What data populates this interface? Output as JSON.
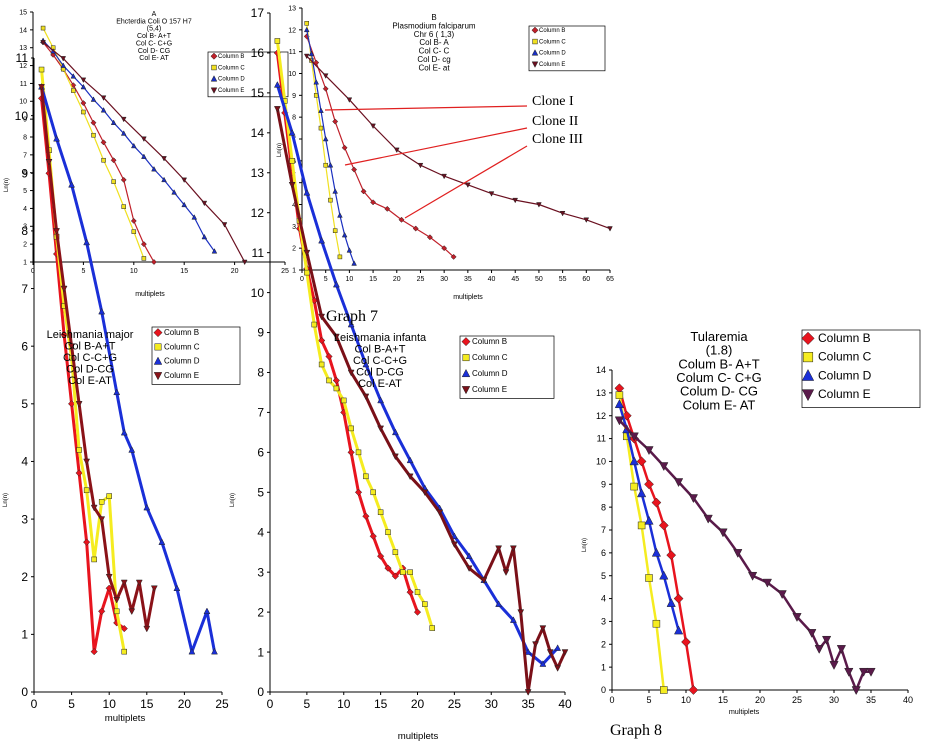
{
  "captions": {
    "graph7": "Graph 7",
    "graph8": "Graph 8"
  },
  "annotations": {
    "clone1": "Clone I",
    "clone2": "Clone II",
    "clone3": "Clone III"
  },
  "colors": {
    "B": "#c0202a",
    "C": "#f0e020",
    "D": "#1a2fc0",
    "E": "#6a1020"
  },
  "chart_data": [
    {
      "id": "ecoli",
      "type": "line",
      "title_lines": [
        "A",
        "Ehcterdia Coli O 157 H7",
        "(5,4)",
        "Col B- A+T",
        "Col C- C+G",
        "Col D- CG",
        "Col E- AT"
      ],
      "xlabel": "multiplets",
      "ylabel": "Ln(n)",
      "xlim": [
        0,
        25
      ],
      "ylim": [
        1,
        15
      ],
      "xticks": [
        0,
        5,
        10,
        15,
        20,
        25
      ],
      "yticks": [
        1,
        2,
        3,
        4,
        5,
        6,
        7,
        8,
        9,
        10,
        11,
        12,
        13,
        14,
        15
      ],
      "legend": [
        "Column B",
        "Column C",
        "Column D",
        "Column E"
      ],
      "series": [
        {
          "name": "Column B",
          "marker": "diamond",
          "color": "#c0202a",
          "x": [
            1,
            2,
            3,
            4,
            5,
            6,
            7,
            8,
            9,
            10,
            11,
            12
          ],
          "y": [
            13.3,
            12.6,
            11.8,
            10.9,
            9.9,
            8.8,
            7.7,
            6.7,
            5.6,
            3.3,
            2.0,
            1.0
          ]
        },
        {
          "name": "Column C",
          "marker": "square",
          "color": "#f0e020",
          "x": [
            1,
            2,
            3,
            4,
            5,
            6,
            7,
            8,
            9,
            10,
            11
          ],
          "y": [
            14.1,
            13.0,
            11.8,
            10.6,
            9.4,
            8.1,
            6.7,
            5.5,
            4.1,
            2.7,
            1.2
          ]
        },
        {
          "name": "Column D",
          "marker": "triangle",
          "color": "#1a2fc0",
          "x": [
            1,
            2,
            3,
            4,
            5,
            6,
            7,
            8,
            9,
            10,
            11,
            12,
            13,
            14,
            15,
            16,
            17,
            18
          ],
          "y": [
            13.4,
            12.8,
            12.0,
            11.4,
            10.8,
            10.1,
            9.5,
            8.8,
            8.2,
            7.5,
            6.9,
            6.2,
            5.6,
            4.9,
            4.2,
            3.5,
            2.4,
            1.6
          ]
        },
        {
          "name": "Column E",
          "marker": "tri-down",
          "color": "#6a1020",
          "x": [
            1,
            3,
            5,
            7,
            9,
            11,
            13,
            15,
            17,
            19,
            21
          ],
          "y": [
            13.3,
            12.4,
            11.2,
            10.2,
            9.0,
            7.9,
            6.8,
            5.6,
            4.3,
            3.1,
            1.0
          ]
        }
      ]
    },
    {
      "id": "plasmodium",
      "type": "line",
      "title_lines": [
        "B",
        "Plasmodium falciparum",
        "Chr 6 ( 1,3)",
        "Col B- A",
        "Col C- C",
        "Col D- cg",
        "Col E- at"
      ],
      "xlabel": "multiplets",
      "ylabel": "Ln(n)",
      "xlim": [
        0,
        65
      ],
      "ylim": [
        1,
        13
      ],
      "xticks": [
        0,
        5,
        10,
        15,
        20,
        25,
        30,
        35,
        40,
        45,
        50,
        55,
        60,
        65
      ],
      "yticks": [
        1,
        2,
        3,
        4,
        5,
        6,
        7,
        8,
        9,
        10,
        11,
        12,
        13
      ],
      "legend": [
        "Column B",
        "Column C",
        "Column D",
        "Column E"
      ],
      "series": [
        {
          "name": "Column B",
          "marker": "diamond",
          "color": "#c0202a",
          "x": [
            1,
            3,
            5,
            7,
            9,
            11,
            13,
            15,
            18,
            21,
            24,
            27,
            30,
            32
          ],
          "y": [
            11.7,
            10.5,
            9.3,
            7.8,
            6.6,
            5.6,
            4.6,
            4.1,
            3.8,
            3.3,
            2.9,
            2.5,
            2.0,
            1.6
          ]
        },
        {
          "name": "Column C",
          "marker": "square",
          "color": "#f0e020",
          "x": [
            1,
            2,
            3,
            4,
            5,
            6,
            7,
            8
          ],
          "y": [
            12.3,
            10.6,
            9.0,
            7.5,
            5.8,
            4.2,
            2.8,
            1.6
          ]
        },
        {
          "name": "Column D",
          "marker": "triangle",
          "color": "#1a2fc0",
          "x": [
            1,
            2,
            3,
            4,
            5,
            6,
            7,
            8,
            9,
            10,
            11
          ],
          "y": [
            12.0,
            10.9,
            9.6,
            8.3,
            7.0,
            5.8,
            4.6,
            3.5,
            2.6,
            1.9,
            1.3
          ]
        },
        {
          "name": "Column E",
          "marker": "tri-down",
          "color": "#6a1020",
          "x": [
            1,
            5,
            10,
            15,
            20,
            25,
            30,
            35,
            40,
            45,
            50,
            55,
            60,
            65
          ],
          "y": [
            10.8,
            9.9,
            8.8,
            7.6,
            6.5,
            5.8,
            5.3,
            4.9,
            4.5,
            4.2,
            4.0,
            3.6,
            3.3,
            2.9
          ]
        }
      ]
    },
    {
      "id": "leish-major",
      "type": "line",
      "title_lines": [
        "Leishmania  major",
        "Col B-A+T",
        "Col C-C+G",
        "Col D-CG",
        "Col E-AT"
      ],
      "xlabel": "multiplets",
      "ylabel": "Ln(n)",
      "xlim": [
        0,
        25
      ],
      "ylim": [
        0,
        11
      ],
      "xticks": [
        0,
        5,
        10,
        15,
        20,
        25
      ],
      "yticks": [
        0,
        1,
        2,
        3,
        4,
        5,
        6,
        7,
        8,
        9,
        10,
        11
      ],
      "legend": [
        "Column B",
        "Column C",
        "Column D",
        "Column E"
      ],
      "series": [
        {
          "name": "Column B",
          "marker": "diamond",
          "color": "#e8141e",
          "x": [
            1,
            2,
            3,
            4,
            5,
            6,
            7,
            8,
            9,
            10,
            11,
            12
          ],
          "y": [
            10.3,
            9.0,
            7.6,
            6.2,
            5.0,
            3.8,
            2.6,
            0.7,
            1.4,
            1.8,
            1.2,
            1.1
          ]
        },
        {
          "name": "Column C",
          "marker": "square",
          "color": "#f5ec20",
          "x": [
            1,
            2,
            3,
            4,
            5,
            6,
            7,
            8,
            9,
            10,
            11,
            12
          ],
          "y": [
            10.8,
            9.4,
            7.9,
            6.7,
            5.8,
            4.2,
            3.5,
            2.3,
            3.3,
            3.4,
            1.4,
            0.7
          ]
        },
        {
          "name": "Column D",
          "marker": "triangle",
          "color": "#1a2fd8",
          "x": [
            1,
            3,
            5,
            7,
            9,
            11,
            12,
            13,
            15,
            17,
            19,
            21,
            23,
            24
          ],
          "y": [
            10.5,
            9.6,
            8.8,
            7.8,
            6.6,
            5.2,
            4.5,
            4.2,
            3.2,
            2.6,
            1.8,
            0.7,
            1.4,
            0.7
          ]
        },
        {
          "name": "Column E",
          "marker": "tri-down",
          "color": "#8a1218",
          "x": [
            1,
            2,
            3,
            4,
            5,
            6,
            7,
            8,
            9,
            10,
            11,
            12,
            13,
            14,
            15,
            16
          ],
          "y": [
            10.5,
            9.2,
            8.0,
            7.0,
            6.0,
            5.0,
            4.0,
            3.2,
            3.0,
            2.0,
            1.6,
            1.9,
            1.4,
            1.9,
            1.1,
            1.8
          ]
        }
      ]
    },
    {
      "id": "leish-infanta",
      "type": "line",
      "title_lines": [
        "Leishmania infanta",
        "Col B-A+T",
        "Col C-C+G",
        "Col D-CG",
        "Col E-AT"
      ],
      "xlabel": "multiplets",
      "ylabel": "Ln(n)",
      "xlim": [
        0,
        40
      ],
      "ylim": [
        0,
        17
      ],
      "xticks": [
        0,
        5,
        10,
        15,
        20,
        25,
        30,
        35,
        40
      ],
      "yticks": [
        0,
        1,
        2,
        3,
        4,
        5,
        6,
        7,
        8,
        9,
        10,
        11,
        12,
        13,
        14,
        15,
        16,
        17
      ],
      "legend": [
        "Column B",
        "Column C",
        "Column D",
        "Column E"
      ],
      "series": [
        {
          "name": "Column B",
          "marker": "diamond",
          "color": "#e8141e",
          "x": [
            1,
            2,
            3,
            4,
            5,
            6,
            7,
            8,
            9,
            10,
            11,
            12,
            13,
            14,
            15,
            16,
            17,
            18,
            19,
            20
          ],
          "y": [
            16.0,
            14.5,
            13.0,
            11.6,
            10.6,
            9.8,
            8.8,
            8.4,
            7.8,
            7.0,
            6.0,
            5.0,
            4.4,
            3.9,
            3.4,
            3.1,
            2.9,
            3.1,
            2.5,
            2.0
          ]
        },
        {
          "name": "Column C",
          "marker": "square",
          "color": "#f5ec20",
          "x": [
            1,
            2,
            3,
            4,
            5,
            6,
            7,
            8,
            9,
            10,
            11,
            12,
            13,
            14,
            15,
            16,
            17,
            18,
            19,
            20,
            21,
            22
          ],
          "y": [
            16.3,
            14.8,
            13.3,
            11.8,
            10.5,
            9.2,
            8.2,
            7.8,
            7.6,
            7.3,
            6.6,
            6.0,
            5.4,
            5.0,
            4.5,
            4.0,
            3.5,
            3.0,
            3.0,
            2.5,
            2.2,
            1.6
          ]
        },
        {
          "name": "Column D",
          "marker": "triangle",
          "color": "#1a2fd8",
          "x": [
            1,
            3,
            5,
            7,
            9,
            11,
            13,
            15,
            17,
            19,
            21,
            23,
            25,
            27,
            29,
            31,
            33,
            35,
            37,
            39
          ],
          "y": [
            15.2,
            14.0,
            12.5,
            11.3,
            10.2,
            9.2,
            8.2,
            7.3,
            6.5,
            5.8,
            5.1,
            4.6,
            3.9,
            3.4,
            2.8,
            2.2,
            1.8,
            1.0,
            0.7,
            1.1
          ]
        },
        {
          "name": "Column E",
          "marker": "tri-down",
          "color": "#7a1018",
          "x": [
            1,
            3,
            5,
            7,
            9,
            11,
            13,
            15,
            17,
            19,
            21,
            23,
            25,
            27,
            29,
            31,
            32,
            33,
            34,
            35,
            36,
            37,
            38,
            39,
            40
          ],
          "y": [
            14.6,
            12.7,
            11.0,
            9.4,
            8.9,
            8.0,
            7.4,
            6.6,
            5.9,
            5.4,
            5.0,
            4.5,
            3.7,
            3.1,
            2.8,
            3.6,
            3.0,
            3.6,
            2.0,
            0.0,
            1.2,
            1.6,
            1.0,
            0.6,
            1.0
          ]
        }
      ]
    },
    {
      "id": "tularemia",
      "type": "line",
      "title_lines": [
        "Tularemia",
        "(1.8)",
        "Colum B- A+T",
        "Colum C- C+G",
        "Colum D- CG",
        "Colum E- AT"
      ],
      "xlabel": "multiplets",
      "ylabel": "Ln(n)",
      "xlim": [
        0,
        40
      ],
      "ylim": [
        0,
        14
      ],
      "xticks": [
        0,
        5,
        10,
        15,
        20,
        25,
        30,
        35,
        40
      ],
      "yticks": [
        0,
        1,
        2,
        3,
        4,
        5,
        6,
        7,
        8,
        9,
        10,
        11,
        12,
        13,
        14
      ],
      "legend": [
        "Column B",
        "Column C",
        "Column D",
        "Column E"
      ],
      "series": [
        {
          "name": "Column B",
          "marker": "diamond",
          "color": "#e8141e",
          "x": [
            1,
            2,
            3,
            4,
            5,
            6,
            7,
            8,
            9,
            10,
            11
          ],
          "y": [
            13.2,
            12.0,
            11.0,
            10.0,
            9.0,
            8.2,
            7.2,
            5.9,
            4.0,
            2.1,
            0.0
          ]
        },
        {
          "name": "Column C",
          "marker": "square",
          "color": "#f5ec20",
          "x": [
            1,
            2,
            3,
            4,
            5,
            6,
            7
          ],
          "y": [
            12.9,
            11.1,
            8.9,
            7.2,
            4.9,
            2.9,
            0.0
          ]
        },
        {
          "name": "Column D",
          "marker": "triangle",
          "color": "#1a2fd8",
          "x": [
            1,
            2,
            3,
            4,
            5,
            6,
            7,
            8,
            9
          ],
          "y": [
            12.5,
            11.4,
            10.0,
            8.6,
            7.4,
            6.0,
            5.0,
            3.8,
            2.6
          ]
        },
        {
          "name": "Column E",
          "marker": "tri-down",
          "color": "#5a1a4a",
          "x": [
            1,
            3,
            5,
            7,
            9,
            11,
            13,
            15,
            17,
            19,
            21,
            23,
            25,
            27,
            28,
            29,
            30,
            31,
            32,
            33,
            34,
            35
          ],
          "y": [
            11.8,
            11.1,
            10.5,
            9.8,
            9.1,
            8.4,
            7.5,
            6.9,
            6.0,
            5.0,
            4.7,
            4.2,
            3.2,
            2.5,
            1.8,
            2.2,
            1.1,
            1.8,
            0.8,
            0.0,
            0.8,
            0.8
          ]
        }
      ]
    }
  ]
}
